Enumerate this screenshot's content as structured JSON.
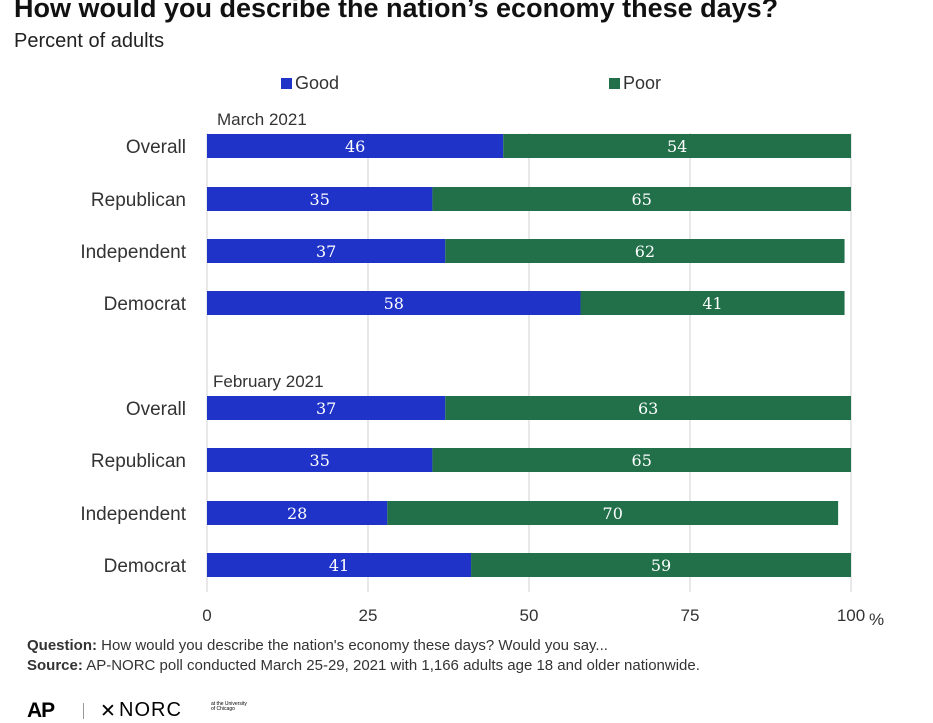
{
  "header": {
    "title": "How would you describe the nation’s economy these days?",
    "subtitle": "Percent of adults"
  },
  "chart_data": {
    "type": "bar",
    "orientation": "horizontal",
    "stacked": true,
    "legend": [
      {
        "name": "Good",
        "color": "#1f33c9"
      },
      {
        "name": "Poor",
        "color": "#22704a"
      }
    ],
    "legend_position": "top",
    "groups": [
      {
        "label": "March 2021",
        "categories": [
          "Overall",
          "Republican",
          "Independent",
          "Democrat"
        ],
        "series": [
          {
            "name": "Good",
            "values": [
              46,
              35,
              37,
              58
            ]
          },
          {
            "name": "Poor",
            "values": [
              54,
              65,
              62,
              41
            ]
          }
        ]
      },
      {
        "label": "February 2021",
        "categories": [
          "Overall",
          "Republican",
          "Independent",
          "Democrat"
        ],
        "series": [
          {
            "name": "Good",
            "values": [
              37,
              35,
              28,
              41
            ]
          },
          {
            "name": "Poor",
            "values": [
              63,
              65,
              70,
              59
            ]
          }
        ]
      }
    ],
    "xlim": [
      0,
      100
    ],
    "xticks": [
      "0",
      "25",
      "50",
      "75",
      "100"
    ],
    "x_unit": "%",
    "grid": true,
    "value_label_color": "#ffffff"
  },
  "footer": {
    "question_label": "Question:",
    "question_text": " How would you describe the nation's economy these days? Would you say...",
    "source_label": "Source:",
    "source_text": " AP-NORC poll conducted March 25-29, 2021 with 1,166 adults age 18 and older nationwide."
  },
  "logos": {
    "ap": "AP",
    "norc": "NORC",
    "norc_sub": "at the University of Chicago"
  }
}
